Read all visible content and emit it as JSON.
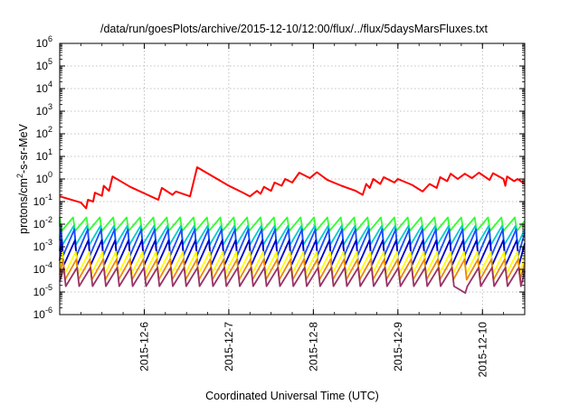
{
  "chart_data": {
    "type": "line",
    "title": "/data/run/goesPlots/archive/2015-12-10/12:00/flux/../flux/5daysMarsFluxes.txt",
    "xlabel": "Coordinated Universal Time (UTC)",
    "ylabel": {
      "prefix": "protons/cm",
      "sup": "2",
      "suffix": "-s-sr-MeV"
    },
    "x_range": [
      "2015-12-05 00:00",
      "2015-12-10 12:00"
    ],
    "y_range": [
      1e-06,
      1000000.0
    ],
    "y_scale": "log",
    "x_ticks": [
      "2015-12-6",
      "2015-12-7",
      "2015-12-8",
      "2015-12-9",
      "2015-12-10"
    ],
    "x_tick_dates": [
      "2015-12-06 00:00",
      "2015-12-07 00:00",
      "2015-12-08 00:00",
      "2015-12-09 00:00",
      "2015-12-10 00:00"
    ],
    "y_ticks": [
      {
        "base": "10",
        "exp": "6"
      },
      {
        "base": "10",
        "exp": "5"
      },
      {
        "base": "10",
        "exp": "4"
      },
      {
        "base": "10",
        "exp": "3"
      },
      {
        "base": "10",
        "exp": "2"
      },
      {
        "base": "10",
        "exp": "1"
      },
      {
        "base": "10",
        "exp": "0"
      },
      {
        "base": "10",
        "exp": "-1"
      },
      {
        "base": "10",
        "exp": "-2"
      },
      {
        "base": "10",
        "exp": "-3"
      },
      {
        "base": "10",
        "exp": "-4"
      },
      {
        "base": "10",
        "exp": "-5"
      },
      {
        "base": "10",
        "exp": "-6"
      }
    ],
    "grid": true,
    "series": [
      {
        "color": "#ff0000",
        "points": [
          [
            "2015-12-05 00:00",
            0.17
          ],
          [
            "2015-12-05 06:00",
            0.09
          ],
          [
            "2015-12-05 07:30",
            0.05
          ],
          [
            "2015-12-05 08:00",
            0.12
          ],
          [
            "2015-12-05 09:30",
            0.1
          ],
          [
            "2015-12-05 10:00",
            0.25
          ],
          [
            "2015-12-05 12:00",
            0.18
          ],
          [
            "2015-12-05 12:30",
            0.5
          ],
          [
            "2015-12-05 14:00",
            0.3
          ],
          [
            "2015-12-05 15:00",
            1.3
          ],
          [
            "2015-12-05 20:00",
            0.45
          ],
          [
            "2015-12-06 04:00",
            0.12
          ],
          [
            "2015-12-06 05:00",
            0.4
          ],
          [
            "2015-12-06 08:00",
            0.2
          ],
          [
            "2015-12-06 09:00",
            0.28
          ],
          [
            "2015-12-06 13:00",
            0.17
          ],
          [
            "2015-12-06 15:00",
            3.3
          ],
          [
            "2015-12-07 00:00",
            0.5
          ],
          [
            "2015-12-07 04:00",
            0.25
          ],
          [
            "2015-12-07 06:00",
            0.17
          ],
          [
            "2015-12-07 08:00",
            0.3
          ],
          [
            "2015-12-07 09:00",
            0.22
          ],
          [
            "2015-12-07 10:00",
            0.45
          ],
          [
            "2015-12-07 12:00",
            0.3
          ],
          [
            "2015-12-07 13:00",
            0.7
          ],
          [
            "2015-12-07 15:00",
            0.5
          ],
          [
            "2015-12-07 16:00",
            1.0
          ],
          [
            "2015-12-07 18:00",
            0.7
          ],
          [
            "2015-12-07 20:00",
            1.9
          ],
          [
            "2015-12-07 23:00",
            1.1
          ],
          [
            "2015-12-08 01:00",
            2.0
          ],
          [
            "2015-12-08 04:00",
            0.9
          ],
          [
            "2015-12-08 08:00",
            0.5
          ],
          [
            "2015-12-08 12:00",
            0.3
          ],
          [
            "2015-12-08 14:00",
            0.2
          ],
          [
            "2015-12-08 15:00",
            0.6
          ],
          [
            "2015-12-08 16:00",
            0.4
          ],
          [
            "2015-12-08 17:00",
            1.0
          ],
          [
            "2015-12-08 19:00",
            0.6
          ],
          [
            "2015-12-08 20:00",
            1.2
          ],
          [
            "2015-12-08 23:00",
            0.7
          ],
          [
            "2015-12-09 00:00",
            1.0
          ],
          [
            "2015-12-09 04:00",
            0.55
          ],
          [
            "2015-12-09 07:00",
            0.28
          ],
          [
            "2015-12-09 09:00",
            0.6
          ],
          [
            "2015-12-09 11:00",
            0.4
          ],
          [
            "2015-12-09 12:00",
            1.2
          ],
          [
            "2015-12-09 14:00",
            0.8
          ],
          [
            "2015-12-09 15:00",
            1.7
          ],
          [
            "2015-12-09 17:00",
            1.0
          ],
          [
            "2015-12-09 19:00",
            1.7
          ],
          [
            "2015-12-09 21:00",
            1.1
          ],
          [
            "2015-12-09 23:00",
            1.9
          ],
          [
            "2015-12-10 02:00",
            0.9
          ],
          [
            "2015-12-10 03:00",
            1.8
          ],
          [
            "2015-12-10 06:00",
            1.0
          ],
          [
            "2015-12-10 06:30",
            0.5
          ],
          [
            "2015-12-10 07:00",
            1.3
          ],
          [
            "2015-12-10 09:00",
            0.8
          ],
          [
            "2015-12-10 10:00",
            1.0
          ],
          [
            "2015-12-10 12:00",
            0.6
          ]
        ]
      }
    ],
    "periodic_series": [
      {
        "color": "#33ff33",
        "peak": 0.02,
        "trough": 0.005,
        "phase": 0.0,
        "dip": []
      },
      {
        "color": "#00cccc",
        "peak": 0.0085,
        "trough": 0.0012,
        "phase": 0.05,
        "dip": []
      },
      {
        "color": "#1a4cff",
        "peak": 0.006,
        "trough": 0.0004,
        "phase": 0.1,
        "dip": []
      },
      {
        "color": "#0000cc",
        "peak": 0.002,
        "trough": 0.00015,
        "phase": 0.15,
        "dip": []
      },
      {
        "color": "#ffff00",
        "peak": 0.0006,
        "trough": 6e-05,
        "phase": 0.2,
        "dip": []
      },
      {
        "color": "#ee8800",
        "peak": 0.00028,
        "trough": 3.5e-05,
        "phase": 0.25,
        "dip": []
      },
      {
        "color": "#993366",
        "peak": 0.00012,
        "trough": 1.8e-05,
        "phase": 0.3,
        "dip": [
          [
            "2015-12-09 18:00",
            9e-06
          ]
        ]
      }
    ],
    "periodic_cycle_hours": 3.8
  }
}
